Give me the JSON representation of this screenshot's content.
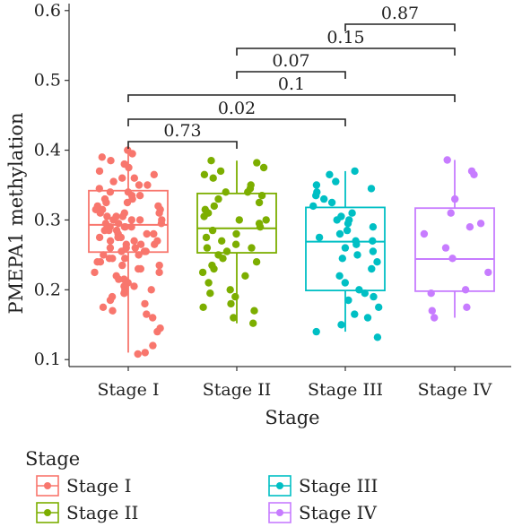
{
  "chart_data": {
    "type": "box",
    "xlabel": "Stage",
    "ylabel": "PMEPA1 methylation",
    "ylim": [
      0.09,
      0.61
    ],
    "yticks": [
      0.1,
      0.2,
      0.3,
      0.4,
      0.5,
      0.6
    ],
    "categories": [
      "Stage I",
      "Stage II",
      "Stage III",
      "Stage IV"
    ],
    "legend": {
      "title": "Stage",
      "position": "bottom",
      "entries": [
        "Stage I",
        "Stage II",
        "Stage III",
        "Stage IV"
      ]
    },
    "colors": [
      "#F8766D",
      "#7CAE00",
      "#00BFC4",
      "#C77CFF"
    ],
    "boxes": [
      {
        "category": "Stage I",
        "whisker_low": 0.11,
        "q1": 0.254,
        "median": 0.293,
        "q3": 0.342,
        "whisker_high": 0.4
      },
      {
        "category": "Stage II",
        "whisker_low": 0.152,
        "q1": 0.253,
        "median": 0.288,
        "q3": 0.338,
        "whisker_high": 0.385
      },
      {
        "category": "Stage III",
        "whisker_low": 0.14,
        "q1": 0.199,
        "median": 0.269,
        "q3": 0.318,
        "whisker_high": 0.37
      },
      {
        "category": "Stage IV",
        "whisker_low": 0.16,
        "q1": 0.198,
        "median": 0.244,
        "q3": 0.317,
        "whisker_high": 0.386
      }
    ],
    "comparisons": [
      {
        "groups": [
          "Stage I",
          "Stage II"
        ],
        "p": "0.73"
      },
      {
        "groups": [
          "Stage I",
          "Stage III"
        ],
        "p": "0.02"
      },
      {
        "groups": [
          "Stage I",
          "Stage IV"
        ],
        "p": "0.1"
      },
      {
        "groups": [
          "Stage II",
          "Stage III"
        ],
        "p": "0.07"
      },
      {
        "groups": [
          "Stage II",
          "Stage IV"
        ],
        "p": "0.15"
      },
      {
        "groups": [
          "Stage III",
          "Stage IV"
        ],
        "p": "0.87"
      }
    ],
    "points": [
      {
        "category": "Stage I",
        "values": [
          0.4,
          0.395,
          0.39,
          0.385,
          0.38,
          0.375,
          0.37,
          0.365,
          0.36,
          0.36,
          0.355,
          0.35,
          0.35,
          0.345,
          0.34,
          0.34,
          0.335,
          0.33,
          0.33,
          0.325,
          0.325,
          0.32,
          0.32,
          0.315,
          0.315,
          0.31,
          0.31,
          0.305,
          0.305,
          0.3,
          0.3,
          0.3,
          0.295,
          0.295,
          0.29,
          0.29,
          0.29,
          0.285,
          0.285,
          0.28,
          0.28,
          0.275,
          0.275,
          0.27,
          0.27,
          0.265,
          0.265,
          0.26,
          0.26,
          0.255,
          0.255,
          0.25,
          0.25,
          0.245,
          0.245,
          0.24,
          0.24,
          0.235,
          0.23,
          0.23,
          0.225,
          0.22,
          0.215,
          0.21,
          0.205,
          0.2,
          0.2,
          0.195,
          0.19,
          0.185,
          0.18,
          0.175,
          0.17,
          0.165,
          0.16,
          0.145,
          0.14,
          0.12,
          0.11,
          0.108,
          0.335,
          0.315,
          0.305,
          0.295,
          0.285,
          0.275,
          0.265,
          0.255,
          0.245,
          0.235,
          0.225,
          0.215,
          0.205,
          0.195,
          0.31,
          0.3,
          0.29,
          0.28,
          0.27,
          0.26
        ]
      },
      {
        "category": "Stage II",
        "values": [
          0.385,
          0.382,
          0.375,
          0.37,
          0.365,
          0.36,
          0.35,
          0.345,
          0.34,
          0.335,
          0.33,
          0.325,
          0.32,
          0.315,
          0.31,
          0.305,
          0.3,
          0.295,
          0.29,
          0.285,
          0.28,
          0.275,
          0.27,
          0.265,
          0.26,
          0.255,
          0.25,
          0.245,
          0.24,
          0.235,
          0.23,
          0.225,
          0.22,
          0.21,
          0.2,
          0.195,
          0.19,
          0.18,
          0.175,
          0.17,
          0.16,
          0.152,
          0.34,
          0.3,
          0.26
        ]
      },
      {
        "category": "Stage III",
        "values": [
          0.37,
          0.365,
          0.355,
          0.35,
          0.345,
          0.34,
          0.335,
          0.33,
          0.325,
          0.32,
          0.31,
          0.305,
          0.3,
          0.295,
          0.29,
          0.285,
          0.28,
          0.275,
          0.27,
          0.265,
          0.26,
          0.255,
          0.25,
          0.245,
          0.24,
          0.23,
          0.22,
          0.21,
          0.2,
          0.195,
          0.19,
          0.185,
          0.175,
          0.165,
          0.16,
          0.15,
          0.14,
          0.132,
          0.3,
          0.27
        ]
      },
      {
        "category": "Stage IV",
        "values": [
          0.386,
          0.37,
          0.365,
          0.33,
          0.31,
          0.295,
          0.29,
          0.28,
          0.26,
          0.245,
          0.225,
          0.2,
          0.195,
          0.175,
          0.17,
          0.16
        ]
      }
    ]
  }
}
